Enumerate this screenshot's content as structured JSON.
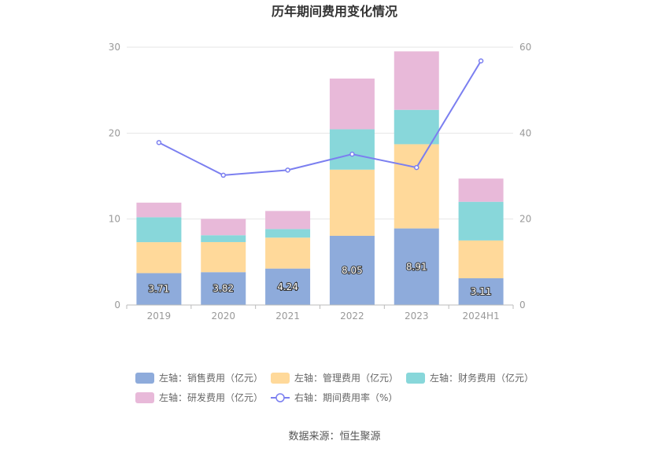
{
  "chart_data": {
    "type": "bar",
    "title": "历年期间费用变化情况",
    "categories": [
      "2019",
      "2020",
      "2021",
      "2022",
      "2023",
      "2024H1"
    ],
    "series": [
      {
        "name": "左轴：销售费用（亿元）",
        "kind": "bar",
        "axis": "left",
        "color": "#8eabdb",
        "values": [
          3.71,
          3.82,
          4.24,
          8.05,
          8.91,
          3.11
        ]
      },
      {
        "name": "左轴：管理费用（亿元）",
        "kind": "bar",
        "axis": "left",
        "color": "#ffd99a",
        "values": [
          3.6,
          3.5,
          3.6,
          7.7,
          9.8,
          4.4
        ]
      },
      {
        "name": "左轴：财务费用（亿元）",
        "kind": "bar",
        "axis": "left",
        "color": "#88d7da",
        "values": [
          2.9,
          0.8,
          1.0,
          4.7,
          4.0,
          4.5
        ]
      },
      {
        "name": "左轴：研发费用（亿元）",
        "kind": "bar",
        "axis": "left",
        "color": "#e8b9d9",
        "values": [
          1.7,
          1.9,
          2.1,
          5.9,
          6.8,
          2.7
        ]
      },
      {
        "name": "右轴：期间费用率（%）",
        "kind": "line",
        "axis": "right",
        "color": "#7b7ff0",
        "values": [
          37.8,
          30.2,
          31.4,
          35.1,
          32.0,
          56.8
        ]
      }
    ],
    "data_labels": [
      "3.71",
      "3.82",
      "4.24",
      "8.05",
      "8.91",
      "3.11"
    ],
    "left_axis": {
      "ylim": [
        0,
        30
      ],
      "ticks": [
        "0",
        "10",
        "20",
        "30"
      ]
    },
    "right_axis": {
      "ylim": [
        0,
        60
      ],
      "ticks": [
        "0",
        "20",
        "40",
        "60"
      ]
    },
    "grid": true,
    "legend_position": "bottom"
  },
  "footer": {
    "source": "数据来源：恒生聚源"
  }
}
